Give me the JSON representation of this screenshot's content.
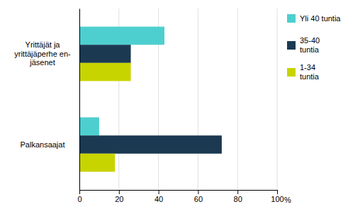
{
  "chart_data": {
    "type": "bar",
    "orientation": "horizontal",
    "categories": [
      "Palkansaajat",
      "Yrittäjät ja\nyrittäjäperhe en-\njäsenet"
    ],
    "series": [
      {
        "name": "Yli 40 tuntia",
        "color": "#4ecfcf",
        "values": [
          10,
          43
        ]
      },
      {
        "name": "35-40\ntuntia",
        "color": "#1b3a52",
        "values": [
          72,
          26
        ]
      },
      {
        "name": "1-34\ntuntia",
        "color": "#c8d400",
        "values": [
          18,
          26
        ]
      }
    ],
    "xlim": [
      0,
      100
    ],
    "xticks": [
      0,
      20,
      40,
      60,
      80,
      100
    ],
    "xlabel": "%",
    "grid": true,
    "legend": "upper right"
  }
}
